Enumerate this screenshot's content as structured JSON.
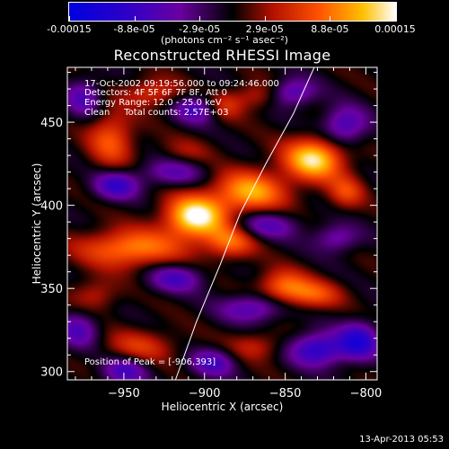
{
  "colorbar": {
    "tick_labels": [
      "-0.00015",
      "-8.8e-05",
      "-2.9e-05",
      "2.9e-05",
      "8.8e-05",
      "0.00015"
    ],
    "units": "(photons cm⁻² s⁻¹ asec⁻²)",
    "range": [
      -0.00015,
      0.00015
    ],
    "colors": [
      "#0000e0",
      "#3000c8",
      "#6a00a0",
      "#000000",
      "#b01000",
      "#ff5000",
      "#ffc000",
      "#ffffff"
    ]
  },
  "chart_data": {
    "type": "heatmap",
    "title": "Reconstructed RHESSI Image",
    "xlabel": "Heliocentric X (arcsec)",
    "ylabel": "Heliocentric Y (arcsec)",
    "xlim": [
      -985,
      -793
    ],
    "ylim": [
      295,
      483
    ],
    "x_ticks": [
      -950,
      -900,
      -850,
      -800
    ],
    "y_ticks": [
      300,
      350,
      400,
      450
    ],
    "x_tick_labels": [
      "−950",
      "−900",
      "−850",
      "−800"
    ],
    "y_tick_labels": [
      "300",
      "350",
      "400",
      "450"
    ],
    "annotations": [
      "17-Oct-2002 09:19:56.000 to 09:24:46.000",
      "Detectors: 4F 5F 6F 7F 8F, Att 0",
      "Energy Range: 12.0 - 25.0 keV",
      "Clean     Total counts: 2.57E+03"
    ],
    "peak_label": "Position of Peak = [-906,393]",
    "peak": [
      -906,
      393
    ],
    "peak_value": 0.00015,
    "limb": [
      [
        -918,
        295
      ],
      [
        -905,
        330
      ],
      [
        -890,
        365
      ],
      [
        -878,
        395
      ],
      [
        -862,
        425
      ],
      [
        -845,
        455
      ],
      [
        -832,
        483
      ]
    ],
    "sources": [
      {
        "x": -906,
        "y": 393,
        "sx": 13,
        "sy": 9,
        "v": 1.0
      },
      {
        "x": -872,
        "y": 408,
        "sx": 16,
        "sy": 9,
        "v": 0.72
      },
      {
        "x": -832,
        "y": 428,
        "sx": 13,
        "sy": 9,
        "v": 0.9
      },
      {
        "x": -946,
        "y": 374,
        "sx": 22,
        "sy": 8,
        "v": 0.65
      },
      {
        "x": -884,
        "y": 378,
        "sx": 11,
        "sy": 7,
        "v": 0.55
      },
      {
        "x": -851,
        "y": 351,
        "sx": 11,
        "sy": 7,
        "v": 0.55
      },
      {
        "x": -832,
        "y": 346,
        "sx": 12,
        "sy": 6,
        "v": 0.45
      },
      {
        "x": -958,
        "y": 440,
        "sx": 10,
        "sy": 12,
        "v": 0.5
      },
      {
        "x": -932,
        "y": 468,
        "sx": 12,
        "sy": 6,
        "v": 0.4
      },
      {
        "x": -888,
        "y": 460,
        "sx": 8,
        "sy": 6,
        "v": 0.35
      },
      {
        "x": -868,
        "y": 466,
        "sx": 10,
        "sy": 6,
        "v": 0.3
      },
      {
        "x": -812,
        "y": 408,
        "sx": 8,
        "sy": 7,
        "v": 0.4
      },
      {
        "x": -940,
        "y": 315,
        "sx": 16,
        "sy": 7,
        "v": 0.35
      },
      {
        "x": -868,
        "y": 315,
        "sx": 12,
        "sy": 6,
        "v": 0.3
      },
      {
        "x": -968,
        "y": 346,
        "sx": 10,
        "sy": 7,
        "v": 0.3
      },
      {
        "x": -912,
        "y": 432,
        "sx": 12,
        "sy": 6,
        "v": 0.2
      },
      {
        "x": -955,
        "y": 412,
        "sx": 10,
        "sy": 6,
        "v": -0.6
      },
      {
        "x": -920,
        "y": 420,
        "sx": 14,
        "sy": 6,
        "v": -0.4
      },
      {
        "x": -905,
        "y": 458,
        "sx": 10,
        "sy": 6,
        "v": -0.5
      },
      {
        "x": -845,
        "y": 468,
        "sx": 10,
        "sy": 6,
        "v": -0.5
      },
      {
        "x": -813,
        "y": 448,
        "sx": 10,
        "sy": 8,
        "v": -0.55
      },
      {
        "x": -862,
        "y": 388,
        "sx": 14,
        "sy": 6,
        "v": -0.45
      },
      {
        "x": -818,
        "y": 380,
        "sx": 10,
        "sy": 6,
        "v": -0.4
      },
      {
        "x": -918,
        "y": 356,
        "sx": 12,
        "sy": 6,
        "v": -0.5
      },
      {
        "x": -870,
        "y": 338,
        "sx": 14,
        "sy": 6,
        "v": -0.5
      },
      {
        "x": -830,
        "y": 313,
        "sx": 12,
        "sy": 7,
        "v": -0.7
      },
      {
        "x": -804,
        "y": 318,
        "sx": 9,
        "sy": 8,
        "v": -0.7
      },
      {
        "x": -978,
        "y": 325,
        "sx": 9,
        "sy": 8,
        "v": -0.45
      },
      {
        "x": -950,
        "y": 300,
        "sx": 10,
        "sy": 6,
        "v": -0.5
      },
      {
        "x": -895,
        "y": 305,
        "sx": 10,
        "sy": 6,
        "v": -0.5
      },
      {
        "x": -975,
        "y": 465,
        "sx": 8,
        "sy": 8,
        "v": -0.45
      }
    ]
  },
  "footer": {
    "date": "13-Apr-2013 05:53"
  }
}
